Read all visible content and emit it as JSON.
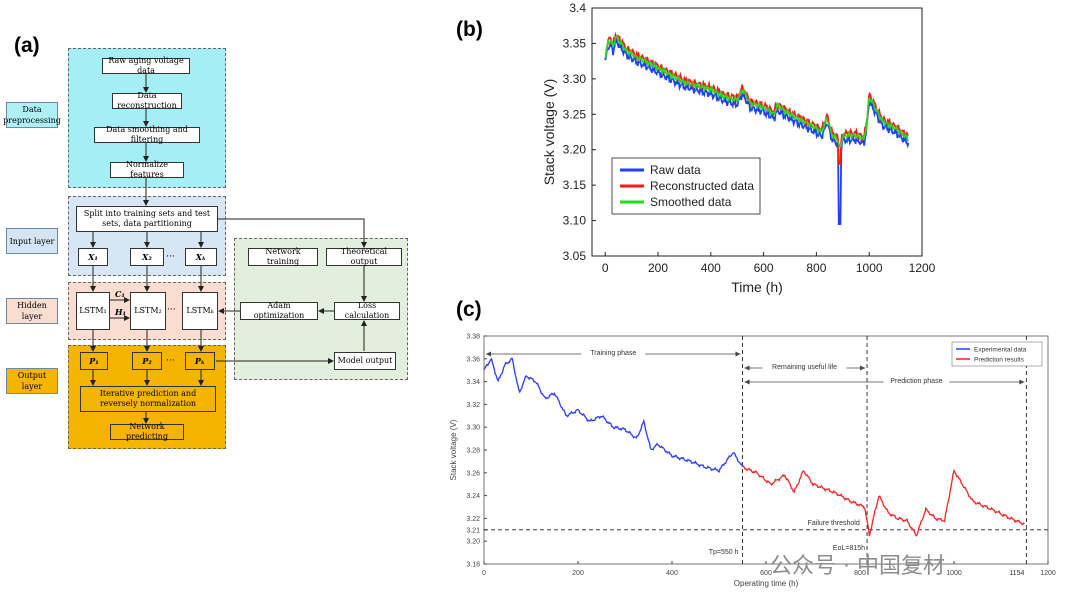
{
  "panel_a": {
    "label": "(a)",
    "side_labels": [
      "Data preprocessing",
      "Input layer",
      "Hidden layer",
      "Output layer"
    ],
    "preprocess_steps": [
      "Raw aging voltage data",
      "Data reconstruction",
      "Data smoothing and filtering",
      "Normalize features"
    ],
    "split_box": "Split into training sets and test sets, data partitioning",
    "inputs": [
      "X₁",
      "X₂",
      "Xₖ"
    ],
    "lstm": [
      "LSTM₁",
      "LSTM₂",
      "LSTMₖ"
    ],
    "state_labels": [
      "C₁",
      "H₁"
    ],
    "outputs": [
      "P₁",
      "P₂",
      "Pₖ"
    ],
    "ellipsis": "···",
    "iterative_box": "Iterative prediction and reversely normalization",
    "network_predicting": "Network predicting",
    "right_boxes": {
      "network_training": "Network training",
      "theoretical_output": "Theoretical output",
      "adam": "Adam optimization",
      "loss": "Loss calculation",
      "model_output": "Model output"
    }
  },
  "chart_data": [
    {
      "panel": "(b)",
      "type": "line",
      "xlabel": "Time (h)",
      "ylabel": "Stack voltage (V)",
      "xlim": [
        -50,
        1200
      ],
      "ylim": [
        3.05,
        3.4
      ],
      "xticks": [
        0,
        200,
        400,
        600,
        800,
        1000,
        1200
      ],
      "yticks": [
        3.05,
        3.1,
        3.15,
        3.2,
        3.25,
        3.3,
        3.35,
        3.4
      ],
      "legend": [
        "Raw data",
        "Reconstructed data",
        "Smoothed data"
      ],
      "legend_position": "bottom-left",
      "series": [
        {
          "name": "Raw data",
          "color": "#1f3fff"
        },
        {
          "name": "Reconstructed data",
          "color": "#ff1a1a"
        },
        {
          "name": "Smoothed data",
          "color": "#22dd22"
        }
      ],
      "base": {
        "x": [
          0,
          10,
          20,
          30,
          40,
          50,
          60,
          80,
          100,
          120,
          150,
          200,
          250,
          300,
          350,
          400,
          450,
          500,
          520,
          550,
          600,
          640,
          650,
          700,
          750,
          800,
          820,
          840,
          860,
          880,
          890,
          900,
          950,
          980,
          990,
          1000,
          1050,
          1100,
          1150
        ],
        "y": [
          3.33,
          3.35,
          3.355,
          3.345,
          3.36,
          3.355,
          3.35,
          3.34,
          3.335,
          3.33,
          3.325,
          3.315,
          3.305,
          3.295,
          3.29,
          3.285,
          3.275,
          3.27,
          3.285,
          3.265,
          3.26,
          3.25,
          3.262,
          3.25,
          3.24,
          3.23,
          3.225,
          3.245,
          3.22,
          3.215,
          3.2,
          3.22,
          3.22,
          3.215,
          3.235,
          3.275,
          3.24,
          3.23,
          3.215
        ]
      },
      "raw_spike": {
        "x": 888,
        "y": 3.095
      }
    },
    {
      "panel": "(c)",
      "type": "line",
      "xlabel": "Operating time (h)",
      "ylabel": "Stack voltage (V)",
      "xlim": [
        0,
        1200
      ],
      "ylim": [
        3.18,
        3.38
      ],
      "xticks": [
        0,
        200,
        400,
        600,
        800,
        1000,
        1200
      ],
      "yticks": [
        3.18,
        3.2,
        3.21,
        3.22,
        3.24,
        3.26,
        3.28,
        3.3,
        3.32,
        3.34,
        3.36,
        3.38
      ],
      "legend": [
        "Experimental data",
        "Prediction results"
      ],
      "legend_position": "top-right",
      "series": [
        {
          "name": "Experimental data",
          "color": "#2a3cff",
          "x": [
            0,
            15,
            30,
            45,
            60,
            75,
            90,
            110,
            130,
            150,
            175,
            200,
            225,
            250,
            275,
            300,
            325,
            340,
            355,
            370,
            400,
            440,
            470,
            500,
            530,
            550
          ],
          "y": [
            3.35,
            3.36,
            3.34,
            3.355,
            3.36,
            3.33,
            3.345,
            3.34,
            3.325,
            3.33,
            3.31,
            3.315,
            3.305,
            3.31,
            3.3,
            3.298,
            3.29,
            3.305,
            3.28,
            3.285,
            3.275,
            3.27,
            3.265,
            3.262,
            3.278,
            3.265
          ]
        },
        {
          "name": "Prediction results",
          "color": "#ff2020",
          "x": [
            550,
            580,
            610,
            640,
            660,
            680,
            700,
            750,
            780,
            810,
            820,
            840,
            860,
            880,
            900,
            920,
            940,
            960,
            980,
            1000,
            1040,
            1080,
            1120,
            1150
          ],
          "y": [
            3.265,
            3.26,
            3.25,
            3.258,
            3.243,
            3.262,
            3.25,
            3.242,
            3.235,
            3.23,
            3.205,
            3.24,
            3.225,
            3.22,
            3.218,
            3.205,
            3.228,
            3.22,
            3.218,
            3.262,
            3.235,
            3.228,
            3.22,
            3.215
          ]
        }
      ],
      "failure_threshold": 3.21,
      "phase_lines": [
        550,
        815,
        1154
      ],
      "annotations": {
        "training_phase": "Training phase",
        "remaining_useful_life": "Remaining useful life",
        "prediction_phase": "Prediction phase",
        "failure_threshold": "Failure threshold",
        "tp": "Tp=550 h",
        "eol": "EoL=815h",
        "end": "1154"
      }
    }
  ],
  "panel_b_label": "(b)",
  "panel_c_label": "(c)",
  "watermark": "公众号 · 中国复材"
}
